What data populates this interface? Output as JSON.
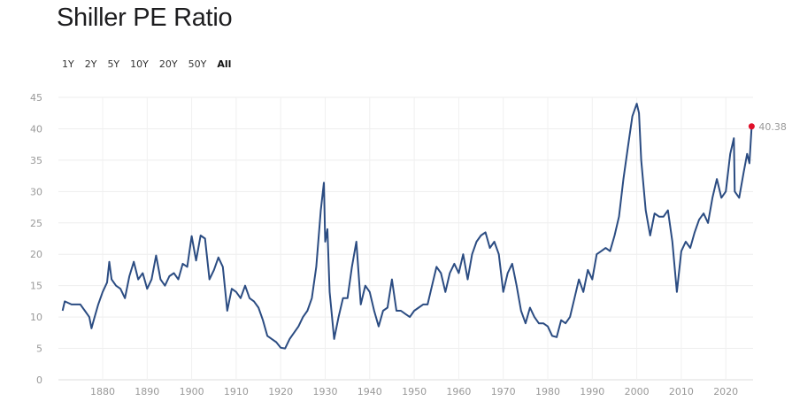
{
  "header": {
    "title": "Shiller PE Ratio"
  },
  "range_buttons": [
    {
      "label": "1Y"
    },
    {
      "label": "2Y"
    },
    {
      "label": "5Y"
    },
    {
      "label": "10Y"
    },
    {
      "label": "20Y"
    },
    {
      "label": "50Y"
    },
    {
      "label": "All",
      "active": true
    }
  ],
  "chart_data": {
    "type": "line",
    "title": "Shiller PE Ratio",
    "xlabel": "",
    "ylabel": "",
    "xlim": [
      1871,
      2025.8
    ],
    "ylim": [
      0,
      45
    ],
    "grid": true,
    "line_color": "#2b4c82",
    "marker_color": "#e0102a",
    "last_value_label": "40.38",
    "xticks": [
      "1880",
      "1890",
      "1900",
      "1910",
      "1920",
      "1930",
      "1940",
      "1950",
      "1960",
      "1970",
      "1980",
      "1990",
      "2000",
      "2010",
      "2020"
    ],
    "yticks": [
      "0",
      "5",
      "10",
      "15",
      "20",
      "25",
      "30",
      "35",
      "40",
      "45"
    ],
    "series": [
      {
        "name": "Shiller PE",
        "points": [
          [
            1871,
            11
          ],
          [
            1871.5,
            12.5
          ],
          [
            1873,
            12
          ],
          [
            1875,
            12
          ],
          [
            1876,
            11
          ],
          [
            1877,
            10
          ],
          [
            1877.5,
            8.2
          ],
          [
            1878,
            9.5
          ],
          [
            1879,
            12
          ],
          [
            1880,
            14
          ],
          [
            1881,
            15.5
          ],
          [
            1881.5,
            18.8
          ],
          [
            1882,
            16
          ],
          [
            1883,
            15
          ],
          [
            1884,
            14.5
          ],
          [
            1885,
            13
          ],
          [
            1886,
            16.5
          ],
          [
            1887,
            18.8
          ],
          [
            1888,
            16
          ],
          [
            1889,
            17
          ],
          [
            1890,
            14.5
          ],
          [
            1891,
            16
          ],
          [
            1892,
            19.8
          ],
          [
            1893,
            16
          ],
          [
            1894,
            15
          ],
          [
            1895,
            16.5
          ],
          [
            1896,
            17
          ],
          [
            1897,
            16
          ],
          [
            1898,
            18.5
          ],
          [
            1899,
            18
          ],
          [
            1900,
            22.9
          ],
          [
            1901,
            19
          ],
          [
            1902,
            23
          ],
          [
            1903,
            22.5
          ],
          [
            1904,
            16
          ],
          [
            1905,
            17.5
          ],
          [
            1906,
            19.5
          ],
          [
            1907,
            18
          ],
          [
            1908,
            11
          ],
          [
            1909,
            14.5
          ],
          [
            1910,
            14
          ],
          [
            1911,
            13
          ],
          [
            1912,
            15
          ],
          [
            1913,
            13
          ],
          [
            1914,
            12.5
          ],
          [
            1915,
            11.5
          ],
          [
            1916,
            9.5
          ],
          [
            1917,
            7
          ],
          [
            1918,
            6.5
          ],
          [
            1919,
            6
          ],
          [
            1920,
            5.1
          ],
          [
            1921,
            5
          ],
          [
            1922,
            6.5
          ],
          [
            1923,
            7.5
          ],
          [
            1924,
            8.5
          ],
          [
            1925,
            10
          ],
          [
            1926,
            11
          ],
          [
            1927,
            13
          ],
          [
            1928,
            18
          ],
          [
            1929,
            27
          ],
          [
            1929.7,
            31.4
          ],
          [
            1930,
            22
          ],
          [
            1930.5,
            24
          ],
          [
            1931,
            14
          ],
          [
            1932,
            6.5
          ],
          [
            1933,
            10
          ],
          [
            1934,
            13
          ],
          [
            1935,
            13
          ],
          [
            1936,
            18
          ],
          [
            1937,
            22
          ],
          [
            1938,
            12
          ],
          [
            1939,
            15
          ],
          [
            1940,
            14
          ],
          [
            1941,
            11
          ],
          [
            1942,
            8.5
          ],
          [
            1943,
            11
          ],
          [
            1944,
            11.5
          ],
          [
            1945,
            16
          ],
          [
            1946,
            11
          ],
          [
            1947,
            11
          ],
          [
            1948,
            10.5
          ],
          [
            1949,
            10
          ],
          [
            1950,
            11
          ],
          [
            1951,
            11.5
          ],
          [
            1952,
            12
          ],
          [
            1953,
            12
          ],
          [
            1954,
            15
          ],
          [
            1955,
            18
          ],
          [
            1956,
            17
          ],
          [
            1957,
            14
          ],
          [
            1958,
            17
          ],
          [
            1959,
            18.5
          ],
          [
            1960,
            17
          ],
          [
            1961,
            20
          ],
          [
            1962,
            16
          ],
          [
            1963,
            20
          ],
          [
            1964,
            22
          ],
          [
            1965,
            23
          ],
          [
            1966,
            23.5
          ],
          [
            1967,
            21
          ],
          [
            1968,
            22
          ],
          [
            1969,
            20
          ],
          [
            1970,
            14
          ],
          [
            1971,
            17
          ],
          [
            1972,
            18.5
          ],
          [
            1973,
            15
          ],
          [
            1974,
            11
          ],
          [
            1975,
            9
          ],
          [
            1976,
            11.5
          ],
          [
            1977,
            10
          ],
          [
            1978,
            9
          ],
          [
            1979,
            9
          ],
          [
            1980,
            8.5
          ],
          [
            1981,
            7
          ],
          [
            1982,
            6.8
          ],
          [
            1983,
            9.5
          ],
          [
            1984,
            9
          ],
          [
            1985,
            10
          ],
          [
            1986,
            13
          ],
          [
            1987,
            16
          ],
          [
            1988,
            14
          ],
          [
            1989,
            17.5
          ],
          [
            1990,
            16
          ],
          [
            1991,
            20
          ],
          [
            1992,
            20.5
          ],
          [
            1993,
            21
          ],
          [
            1994,
            20.5
          ],
          [
            1995,
            23
          ],
          [
            1996,
            26
          ],
          [
            1997,
            32
          ],
          [
            1998,
            37
          ],
          [
            1999,
            42
          ],
          [
            2000,
            44
          ],
          [
            2000.5,
            42.5
          ],
          [
            2001,
            35
          ],
          [
            2002,
            27
          ],
          [
            2003,
            23
          ],
          [
            2004,
            26.5
          ],
          [
            2005,
            26
          ],
          [
            2006,
            26
          ],
          [
            2007,
            27
          ],
          [
            2008,
            22
          ],
          [
            2009,
            14
          ],
          [
            2010,
            20.5
          ],
          [
            2011,
            22
          ],
          [
            2012,
            21
          ],
          [
            2013,
            23.5
          ],
          [
            2014,
            25.5
          ],
          [
            2015,
            26.5
          ],
          [
            2016,
            25
          ],
          [
            2017,
            29
          ],
          [
            2018,
            32
          ],
          [
            2019,
            29
          ],
          [
            2020,
            30
          ],
          [
            2021,
            36
          ],
          [
            2021.8,
            38.5
          ],
          [
            2022,
            30
          ],
          [
            2023,
            29
          ],
          [
            2024,
            33
          ],
          [
            2024.8,
            36
          ],
          [
            2025.3,
            34.5
          ],
          [
            2025.8,
            40.38
          ]
        ]
      }
    ]
  }
}
